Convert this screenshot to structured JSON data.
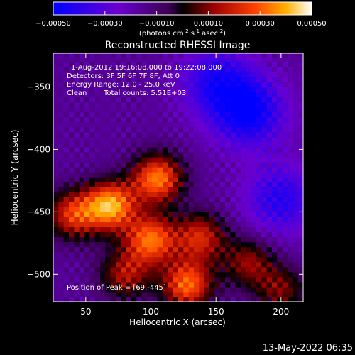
{
  "chart_data": {
    "type": "heatmap",
    "title": "Reconstructed RHESSI Image",
    "xlabel": "Heliocentric X (arcsec)",
    "ylabel": "Heliocentric Y (arcsec)",
    "xlim": [
      25,
      217
    ],
    "ylim": [
      -522,
      -323
    ],
    "xticks": [
      50,
      100,
      150,
      200
    ],
    "yticks": [
      -350,
      -400,
      -450,
      -500
    ],
    "colorbar": {
      "range": [
        -0.0005,
        0.0005
      ],
      "tick_values": [
        -0.0005,
        -0.0003,
        -0.0001,
        0.0001,
        0.0003,
        0.0005
      ],
      "tick_labels": [
        "-0.00050",
        "-0.00030",
        "-0.00010",
        "0.00010",
        "0.00030",
        "0.00050"
      ],
      "label_main": "(photons cm",
      "label_exp1": "-2",
      "label_mid1": " s",
      "label_exp2": "-1",
      "label_mid2": " asec",
      "label_exp3": "-2",
      "label_end": ")"
    },
    "annotations": {
      "time": "1-Aug-2012 19:16:08.000 to 19:22:08.000",
      "detectors": "Detectors: 3F 5F 6F 7F 8F, Att 0",
      "energy": "Energy Range: 12.0 - 25.0 keV",
      "algorithm": "Clean",
      "counts": "Total counts: 5.51E+03",
      "peak": "Position of Peak = [69,-445]"
    },
    "peak_position": [
      69,
      -445
    ],
    "bright_sources": [
      {
        "x": 69,
        "y": -445,
        "intensity": 1.0
      },
      {
        "x": 105,
        "y": -423,
        "intensity": 0.9
      },
      {
        "x": 100,
        "y": -472,
        "intensity": 0.85
      },
      {
        "x": 128,
        "y": -508,
        "intensity": 0.85
      },
      {
        "x": 40,
        "y": -452,
        "intensity": 0.7
      },
      {
        "x": 138,
        "y": -470,
        "intensity": 0.65
      },
      {
        "x": 80,
        "y": -500,
        "intensity": 0.55
      },
      {
        "x": 175,
        "y": -490,
        "intensity": 0.5
      },
      {
        "x": 200,
        "y": -512,
        "intensity": 0.45
      }
    ],
    "dim_regions": [
      {
        "x": 175,
        "y": -370,
        "intensity": -0.6
      },
      {
        "x": 150,
        "y": -345,
        "intensity": -0.45
      },
      {
        "x": 200,
        "y": -440,
        "intensity": -0.45
      }
    ]
  },
  "footer": {
    "datetime": "13-May-2022 06:35"
  }
}
